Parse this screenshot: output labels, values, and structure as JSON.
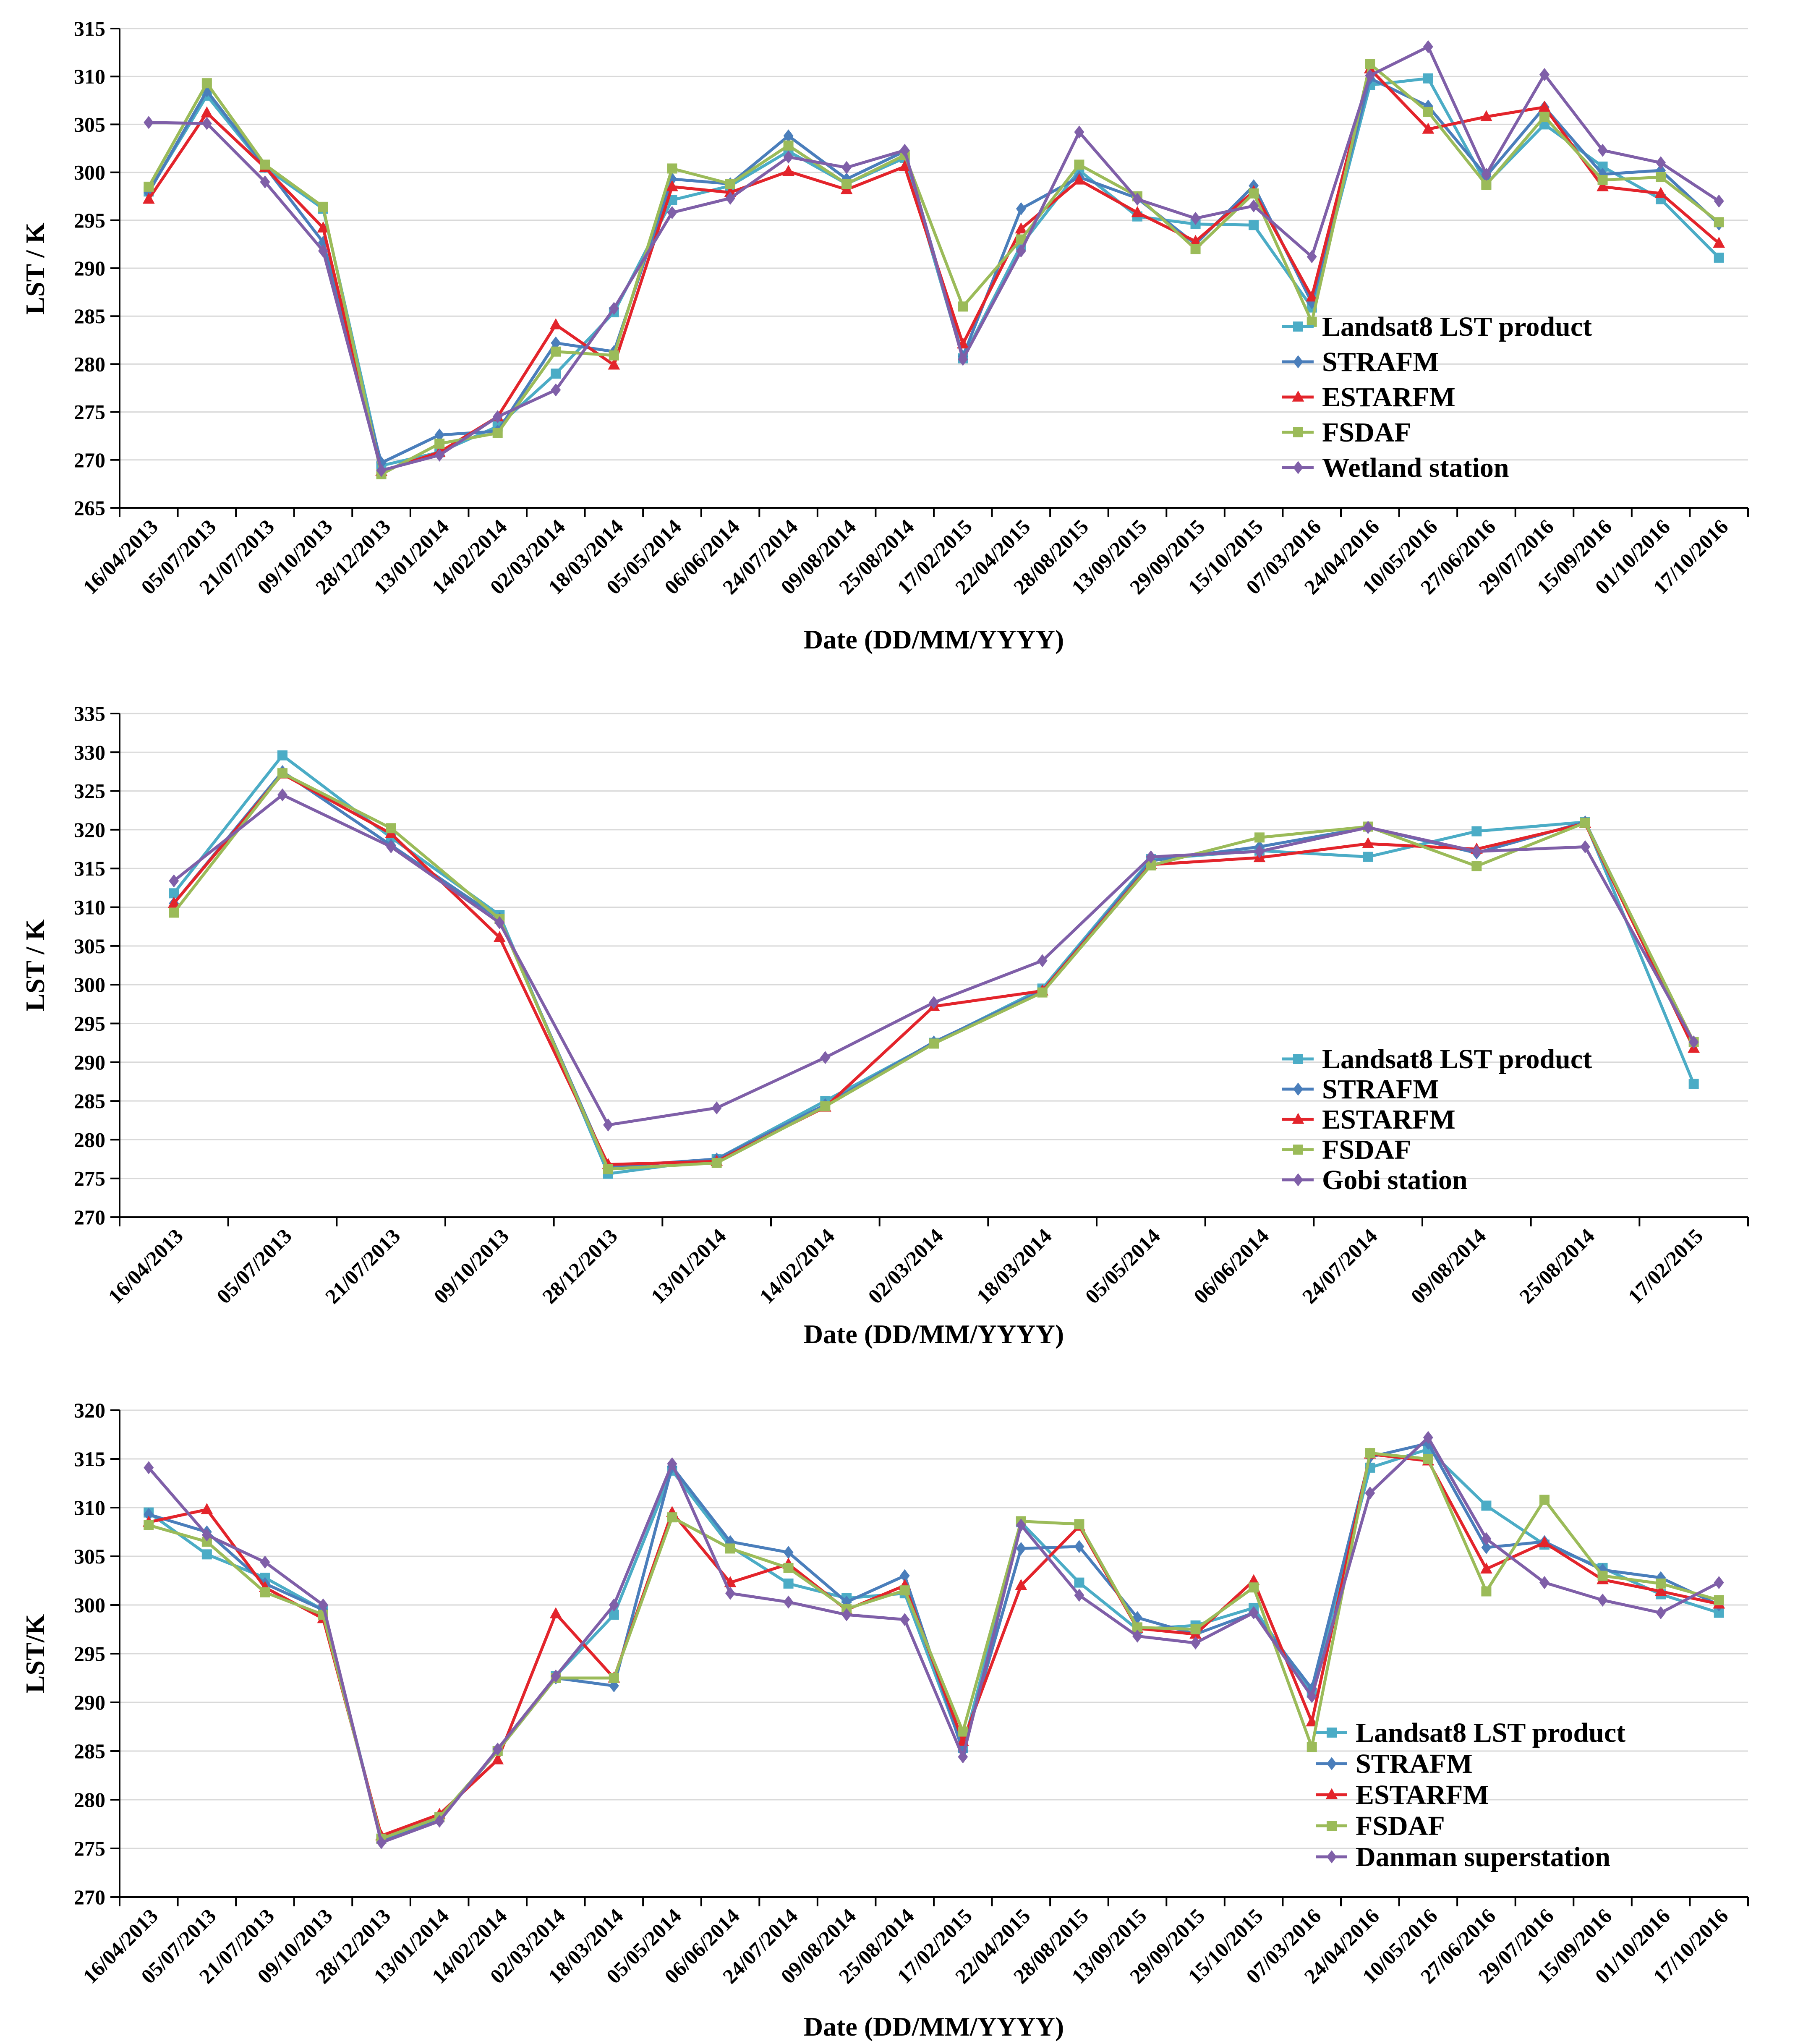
{
  "colors": {
    "landsat": "#4bacc6",
    "strafm": "#4a7ebb",
    "estarfm": "#e3242b",
    "fsdaf": "#9bbb59",
    "station": "#7f5fa8"
  },
  "chart_data": [
    {
      "type": "line",
      "ylabel": "LST / K",
      "xlabel": "Date (DD/MM/YYYY)",
      "ylim": [
        265,
        315
      ],
      "ytick_step": 5,
      "grid": true,
      "legend": "bottom-right",
      "categories": [
        "16/04/2013",
        "05/07/2013",
        "21/07/2013",
        "09/10/2013",
        "28/12/2013",
        "13/01/2014",
        "14/02/2014",
        "02/03/2014",
        "18/03/2014",
        "05/05/2014",
        "06/06/2014",
        "24/07/2014",
        "09/08/2014",
        "25/08/2014",
        "17/02/2015",
        "22/04/2015",
        "28/08/2015",
        "13/09/2015",
        "29/09/2015",
        "15/10/2015",
        "07/03/2016",
        "24/04/2016",
        "10/05/2016",
        "27/06/2016",
        "29/07/2016",
        "15/09/2016",
        "01/10/2016",
        "17/10/2016"
      ],
      "series": [
        {
          "name": "Landsat8 LST product",
          "key": "landsat",
          "marker": "square",
          "values": [
            298.0,
            308.0,
            300.5,
            296.2,
            269.4,
            270.8,
            273.5,
            279.0,
            285.4,
            297.1,
            298.6,
            302.2,
            298.8,
            301.5,
            280.6,
            292.4,
            300.2,
            295.4,
            294.6,
            294.5,
            285.9,
            309.1,
            309.8,
            298.8,
            305.0,
            300.6,
            297.2,
            291.1
          ]
        },
        {
          "name": "STRAFM",
          "key": "strafm",
          "marker": "diamond",
          "values": [
            297.9,
            308.5,
            300.6,
            292.7,
            269.7,
            272.6,
            273.0,
            282.2,
            281.3,
            299.3,
            298.8,
            303.8,
            299.3,
            302.2,
            280.8,
            296.2,
            299.5,
            297.3,
            292.5,
            298.6,
            286.4,
            309.8,
            306.9,
            299.6,
            306.8,
            299.8,
            300.2,
            294.6
          ]
        },
        {
          "name": "ESTARFM",
          "key": "estarfm",
          "marker": "triangle",
          "values": [
            297.2,
            306.2,
            300.5,
            294.2,
            268.8,
            270.8,
            274.5,
            284.1,
            279.9,
            298.5,
            297.9,
            300.1,
            298.2,
            300.6,
            282.1,
            294.1,
            299.2,
            295.8,
            292.8,
            298.0,
            287.0,
            310.8,
            304.5,
            305.8,
            306.8,
            298.5,
            297.8,
            292.6
          ]
        },
        {
          "name": "FSDAF",
          "key": "fsdaf",
          "marker": "square",
          "values": [
            298.5,
            309.3,
            300.8,
            296.4,
            268.5,
            271.7,
            272.8,
            281.3,
            280.9,
            300.4,
            298.8,
            302.8,
            298.8,
            301.8,
            286.0,
            293.0,
            300.8,
            297.5,
            292.0,
            297.8,
            284.4,
            311.3,
            306.3,
            298.7,
            305.8,
            299.2,
            299.5,
            294.8
          ]
        },
        {
          "name": "Wetland station",
          "key": "station",
          "marker": "diamond",
          "values": [
            305.2,
            305.1,
            299.0,
            291.8,
            268.9,
            270.5,
            274.5,
            277.3,
            285.8,
            295.8,
            297.3,
            301.6,
            300.5,
            302.3,
            280.5,
            291.8,
            304.2,
            297.2,
            295.2,
            296.5,
            291.2,
            310.1,
            313.1,
            299.8,
            310.2,
            302.3,
            301.0,
            297.0
          ]
        }
      ]
    },
    {
      "type": "line",
      "ylabel": "LST / K",
      "xlabel": "Date (DD/MM/YYYY)",
      "ylim": [
        270,
        335
      ],
      "ytick_step": 5,
      "grid": true,
      "legend": "bottom-right",
      "categories": [
        "16/04/2013",
        "05/07/2013",
        "21/07/2013",
        "09/10/2013",
        "28/12/2013",
        "13/01/2014",
        "14/02/2014",
        "02/03/2014",
        "18/03/2014",
        "05/05/2014",
        "06/06/2014",
        "24/07/2014",
        "09/08/2014",
        "25/08/2014",
        "17/02/2015"
      ],
      "series": [
        {
          "name": "Landsat8 LST product",
          "key": "landsat",
          "marker": "square",
          "values": [
            311.8,
            329.6,
            319.0,
            309.0,
            275.6,
            277.5,
            285.0,
            292.5,
            299.5,
            316.2,
            317.3,
            316.5,
            319.8,
            321.0,
            287.2
          ]
        },
        {
          "name": "STRAFM",
          "key": "strafm",
          "marker": "diamond",
          "values": [
            310.5,
            327.5,
            318.0,
            308.5,
            276.5,
            277.5,
            284.5,
            292.6,
            299.2,
            316.0,
            317.8,
            320.3,
            317.0,
            321.0,
            292.3
          ]
        },
        {
          "name": "ESTARFM",
          "key": "estarfm",
          "marker": "triangle",
          "values": [
            310.5,
            327.2,
            319.5,
            306.1,
            276.8,
            277.2,
            284.2,
            297.2,
            299.2,
            315.5,
            316.4,
            318.2,
            317.5,
            320.8,
            291.8
          ]
        },
        {
          "name": "FSDAF",
          "key": "fsdaf",
          "marker": "square",
          "values": [
            309.3,
            327.3,
            320.2,
            308.5,
            276.2,
            277.0,
            284.3,
            292.4,
            299.0,
            315.4,
            319.0,
            320.4,
            315.3,
            320.9,
            292.6
          ]
        },
        {
          "name": "Gobi station",
          "key": "station",
          "marker": "diamond",
          "values": [
            313.4,
            324.5,
            317.8,
            308.0,
            281.9,
            284.1,
            290.6,
            297.7,
            303.1,
            316.5,
            317.2,
            320.3,
            317.2,
            317.8,
            292.6
          ]
        }
      ]
    },
    {
      "type": "line",
      "ylabel": "LST/K",
      "xlabel": "Date (DD/MM/YYYY)",
      "ylim": [
        270,
        320
      ],
      "ytick_step": 5,
      "grid": true,
      "legend": "bottom-right",
      "categories": [
        "16/04/2013",
        "05/07/2013",
        "21/07/2013",
        "09/10/2013",
        "28/12/2013",
        "13/01/2014",
        "14/02/2014",
        "02/03/2014",
        "18/03/2014",
        "05/05/2014",
        "06/06/2014",
        "24/07/2014",
        "09/08/2014",
        "25/08/2014",
        "17/02/2015",
        "22/04/2015",
        "28/08/2015",
        "13/09/2015",
        "29/09/2015",
        "15/10/2015",
        "07/03/2016",
        "24/04/2016",
        "10/05/2016",
        "27/06/2016",
        "29/07/2016",
        "15/09/2016",
        "01/10/2016",
        "17/10/2016"
      ],
      "series": [
        {
          "name": "Landsat8 LST product",
          "key": "landsat",
          "marker": "square",
          "values": [
            309.5,
            305.2,
            302.8,
            299.5,
            276.0,
            278.2,
            285.0,
            292.7,
            299.0,
            313.8,
            306.0,
            302.2,
            300.7,
            301.2,
            285.3,
            308.5,
            302.3,
            297.5,
            297.9,
            299.7,
            291.0,
            314.1,
            316.0,
            310.2,
            306.2,
            303.8,
            301.1,
            299.2
          ]
        },
        {
          "name": "STRAFM",
          "key": "strafm",
          "marker": "diamond",
          "values": [
            309.3,
            307.5,
            302.2,
            299.5,
            275.8,
            278.0,
            285.0,
            292.5,
            291.7,
            314.2,
            306.5,
            305.4,
            300.3,
            303.0,
            285.0,
            305.8,
            306.0,
            298.7,
            297.0,
            299.2,
            291.4,
            315.2,
            316.6,
            305.9,
            306.5,
            303.6,
            302.8,
            300.0
          ]
        },
        {
          "name": "ESTARFM",
          "key": "estarfm",
          "marker": "triangle",
          "values": [
            308.5,
            309.8,
            301.8,
            298.6,
            276.3,
            278.5,
            284.1,
            299.1,
            292.5,
            309.5,
            302.3,
            304.2,
            299.5,
            302.0,
            286.0,
            302.0,
            308.1,
            297.6,
            297.0,
            302.5,
            288.0,
            315.5,
            314.8,
            303.7,
            306.4,
            302.6,
            301.4,
            300.1
          ]
        },
        {
          "name": "FSDAF",
          "key": "fsdaf",
          "marker": "square",
          "values": [
            308.2,
            306.5,
            301.3,
            299.0,
            276.0,
            278.2,
            285.0,
            292.5,
            292.5,
            309.0,
            305.8,
            303.8,
            299.6,
            301.5,
            287.0,
            308.6,
            308.3,
            297.7,
            297.5,
            301.8,
            285.4,
            315.6,
            315.0,
            301.4,
            310.8,
            303.0,
            302.2,
            300.5
          ]
        },
        {
          "name": "Danman superstation",
          "key": "station",
          "marker": "diamond",
          "values": [
            314.1,
            307.2,
            304.4,
            300.0,
            275.6,
            277.8,
            285.2,
            292.7,
            300.0,
            314.5,
            301.2,
            300.3,
            299.0,
            298.5,
            284.4,
            308.2,
            301.0,
            296.8,
            296.1,
            299.2,
            290.6,
            311.5,
            317.2,
            306.8,
            302.3,
            300.5,
            299.2,
            302.3
          ]
        }
      ]
    }
  ]
}
